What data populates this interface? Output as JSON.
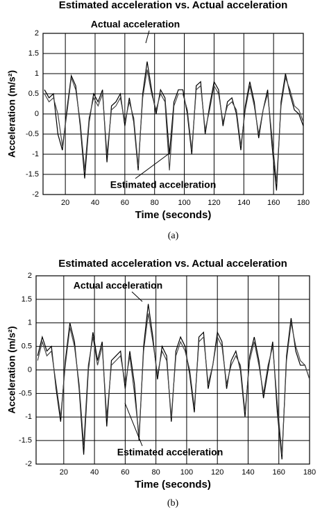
{
  "chart_data": [
    {
      "type": "line",
      "title": "Estimated acceleration vs. Actual acceleration",
      "x_label": "Time (seconds)",
      "y_label": "Acceleration (m/s²)",
      "caption": "(a)",
      "annotations": [
        "Actual acceleration",
        "Estimated acceleration"
      ],
      "x": [
        6,
        9,
        12,
        15,
        18,
        21,
        24,
        27,
        30,
        33,
        36,
        39,
        42,
        45,
        48,
        51,
        54,
        57,
        60,
        63,
        66,
        69,
        72,
        75,
        78,
        81,
        84,
        87,
        90,
        93,
        96,
        99,
        102,
        105,
        108,
        111,
        114,
        117,
        120,
        123,
        126,
        129,
        132,
        135,
        138,
        141,
        144,
        147,
        150,
        153,
        156,
        159,
        162,
        165,
        168,
        171,
        174,
        177,
        180
      ],
      "series": [
        {
          "name": "Actual acceleration",
          "color": "#000000",
          "values": [
            0.6,
            0.4,
            0.5,
            -0.5,
            -0.9,
            0.1,
            0.95,
            0.7,
            -0.3,
            -1.6,
            -0.2,
            0.5,
            0.3,
            0.6,
            -1.2,
            0.2,
            0.3,
            0.5,
            -0.3,
            0.4,
            -0.2,
            -1.4,
            0.5,
            1.3,
            0.6,
            0.0,
            0.6,
            0.4,
            -1.0,
            0.3,
            0.6,
            0.6,
            0.0,
            -1.0,
            0.7,
            0.8,
            -0.5,
            0.2,
            0.8,
            0.6,
            -0.3,
            0.3,
            0.4,
            0.0,
            -0.9,
            0.2,
            0.8,
            0.3,
            -0.6,
            0.1,
            0.6,
            -0.8,
            -1.9,
            0.3,
            1.0,
            0.5,
            0.1,
            0.0,
            -0.3
          ]
        },
        {
          "name": "Estimated acceleration",
          "color": "#444444",
          "values": [
            0.5,
            0.3,
            0.4,
            0.0,
            -0.8,
            0.0,
            0.9,
            0.6,
            -0.2,
            -1.4,
            -0.1,
            0.4,
            0.2,
            0.5,
            -1.0,
            0.1,
            0.2,
            0.4,
            -0.2,
            0.3,
            -0.1,
            -1.3,
            0.4,
            1.1,
            0.5,
            0.1,
            0.5,
            0.3,
            -1.4,
            0.2,
            0.5,
            0.5,
            0.1,
            -0.9,
            0.6,
            0.7,
            -0.4,
            0.1,
            0.7,
            0.5,
            -0.2,
            0.2,
            0.3,
            0.1,
            -0.8,
            0.1,
            0.7,
            0.2,
            -0.5,
            0.1,
            0.5,
            -0.6,
            -1.7,
            0.2,
            0.9,
            0.6,
            0.2,
            0.1,
            -0.2
          ]
        }
      ],
      "xlim": [
        5,
        180
      ],
      "ylim": [
        -2,
        2
      ],
      "xticks": [
        20,
        40,
        60,
        80,
        100,
        120,
        140,
        160,
        180
      ],
      "yticks": [
        -2,
        -1.5,
        -1,
        -0.5,
        0,
        0.5,
        1,
        1.5,
        2
      ],
      "grid": true
    },
    {
      "type": "line",
      "title": "Estimated acceleration vs. Actual acceleration",
      "x_label": "Time (seconds)",
      "y_label": "Acceleration (m/s²)",
      "caption": "(b)",
      "annotations": [
        "Actual acceleration",
        "Estimated acceleration"
      ],
      "x": [
        3,
        6,
        9,
        12,
        15,
        18,
        21,
        24,
        27,
        30,
        33,
        36,
        39,
        42,
        45,
        48,
        51,
        54,
        57,
        60,
        63,
        66,
        69,
        72,
        75,
        78,
        81,
        84,
        87,
        90,
        93,
        96,
        99,
        102,
        105,
        108,
        111,
        114,
        117,
        120,
        123,
        126,
        129,
        132,
        135,
        138,
        141,
        144,
        147,
        150,
        153,
        156,
        159,
        162,
        165,
        168,
        171,
        174,
        177,
        180
      ],
      "series": [
        {
          "name": "Actual acceleration",
          "color": "#000000",
          "values": [
            0.3,
            0.7,
            0.4,
            0.5,
            -0.4,
            -1.1,
            0.2,
            1.0,
            0.6,
            -0.4,
            -1.8,
            0.0,
            0.8,
            0.2,
            0.6,
            -1.2,
            0.2,
            0.3,
            0.4,
            -0.4,
            0.4,
            -0.3,
            -1.5,
            0.5,
            1.4,
            0.7,
            -0.2,
            0.5,
            0.3,
            -1.1,
            0.4,
            0.7,
            0.5,
            -0.1,
            -0.9,
            0.7,
            0.8,
            -0.4,
            0.1,
            0.8,
            0.6,
            -0.4,
            0.2,
            0.4,
            0.0,
            -1.0,
            0.3,
            0.7,
            0.2,
            -0.6,
            0.0,
            0.6,
            -0.9,
            -1.9,
            0.3,
            1.1,
            0.4,
            0.1,
            0.1,
            -0.2
          ]
        },
        {
          "name": "Estimated acceleration",
          "color": "#444444",
          "values": [
            0.2,
            0.6,
            0.3,
            0.4,
            -0.3,
            -1.0,
            0.1,
            0.9,
            0.5,
            -0.3,
            -1.6,
            0.1,
            0.7,
            0.1,
            0.5,
            -1.0,
            0.1,
            0.2,
            0.3,
            -0.3,
            0.3,
            -0.5,
            -1.4,
            0.4,
            1.2,
            0.6,
            -0.1,
            0.4,
            0.2,
            -1.0,
            0.3,
            0.6,
            0.4,
            0.0,
            -0.8,
            0.6,
            0.7,
            -0.3,
            0.1,
            0.7,
            0.5,
            -0.3,
            0.1,
            0.3,
            0.1,
            -0.9,
            0.2,
            0.6,
            0.1,
            -0.5,
            0.1,
            0.5,
            -0.7,
            -1.8,
            0.2,
            1.0,
            0.5,
            0.2,
            0.1,
            -0.2
          ]
        }
      ],
      "xlim": [
        2,
        180
      ],
      "ylim": [
        -2,
        2
      ],
      "xticks": [
        20,
        40,
        60,
        80,
        100,
        120,
        140,
        160,
        180
      ],
      "yticks": [
        -2,
        -1.5,
        -1,
        -0.5,
        0,
        0.5,
        1,
        1.5,
        2
      ],
      "grid": true
    }
  ]
}
